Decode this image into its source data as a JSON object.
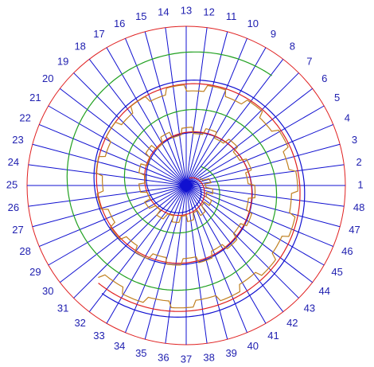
{
  "spokes": [
    "1",
    "2",
    "3",
    "4",
    "5",
    "6",
    "7",
    "8",
    "9",
    "10",
    "11",
    "12",
    "13",
    "14",
    "15",
    "16",
    "17",
    "18",
    "19",
    "20",
    "21",
    "22",
    "23",
    "24",
    "25",
    "26",
    "27",
    "28",
    "29",
    "30",
    "31",
    "32",
    "33",
    "34",
    "35",
    "36",
    "37",
    "38",
    "39",
    "40",
    "41",
    "42",
    "43",
    "44",
    "45",
    "46",
    "47",
    "48"
  ]
}
